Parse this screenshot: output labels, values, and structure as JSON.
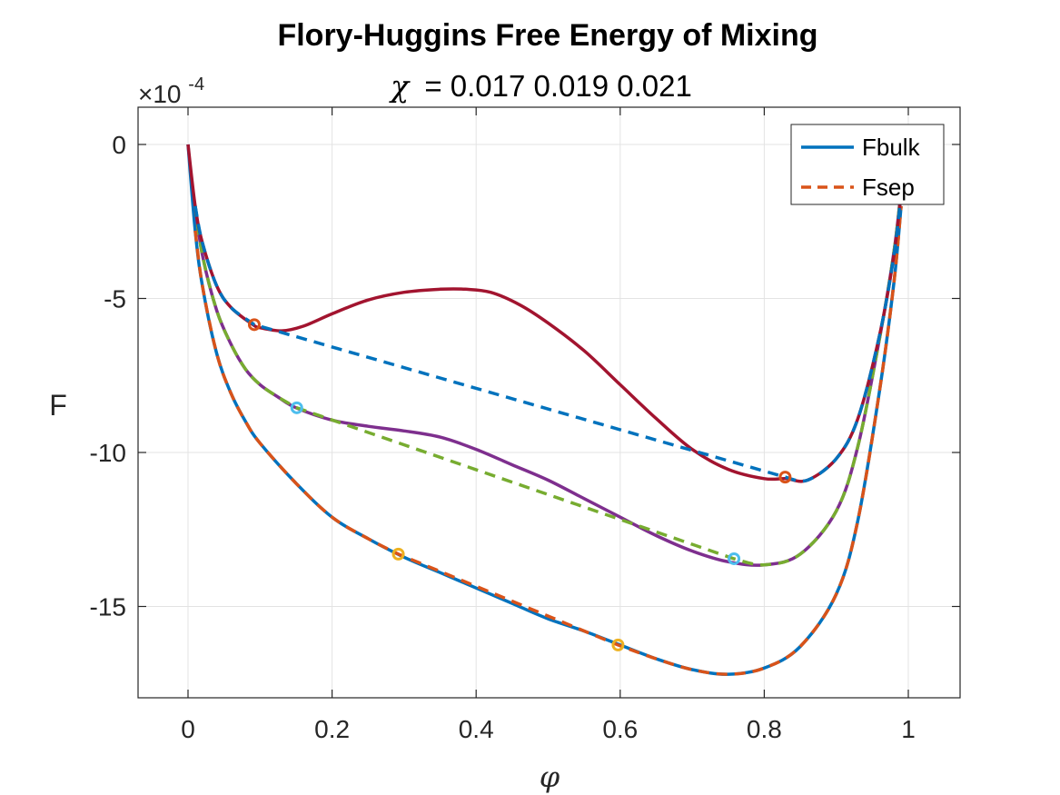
{
  "chart_data": {
    "type": "line",
    "title": "Flory-Huggins Free Energy of Mixing",
    "subtitle_symbol": "χ",
    "subtitle_values": "= 0.017 0.019 0.021",
    "xlabel": "φ",
    "ylabel": "F",
    "y_scale_multiplier": "×10",
    "y_scale_exponent": "-4",
    "xlim": [
      -0.07,
      1.07
    ],
    "ylim": [
      -18,
      1.2
    ],
    "grid": true,
    "xticks": [
      0,
      0.2,
      0.4,
      0.6,
      0.8,
      1
    ],
    "xtick_labels": [
      "0",
      "0.2",
      "0.4",
      "0.6",
      "0.8",
      "1"
    ],
    "yticks": [
      0,
      -5,
      -10,
      -15
    ],
    "ytick_labels": [
      "0",
      "-5",
      "-10",
      "-15"
    ],
    "legend": {
      "placement": "top-right",
      "entries": [
        {
          "label": "Fbulk",
          "color": "#0072BD",
          "style": "solid"
        },
        {
          "label": "Fsep",
          "color": "#D95319",
          "style": "dashed"
        }
      ]
    },
    "series": [
      {
        "chi": 0.017,
        "bulk_color": "#0072BD",
        "sep_color": "#D95319",
        "marker_color": "#EDB120",
        "x": [
          0,
          0.01,
          0.02,
          0.04,
          0.06,
          0.08,
          0.1,
          0.15,
          0.2,
          0.25,
          0.3,
          0.35,
          0.4,
          0.45,
          0.5,
          0.55,
          0.6,
          0.65,
          0.7,
          0.75,
          0.8,
          0.85,
          0.9,
          0.93,
          0.96,
          0.98,
          0.99
        ],
        "y": [
          0,
          -2.8,
          -4.6,
          -6.8,
          -8.1,
          -9.0,
          -9.7,
          -11.0,
          -12.1,
          -12.8,
          -13.4,
          -13.9,
          -14.4,
          -14.9,
          -15.4,
          -15.8,
          -16.25,
          -16.7,
          -17.05,
          -17.2,
          -17.0,
          -16.3,
          -14.6,
          -12.2,
          -8.0,
          -4.5,
          -2.0
        ],
        "sep_x": [
          0.01,
          0.02,
          0.04,
          0.06,
          0.08,
          0.1,
          0.15,
          0.2,
          0.25,
          0.292,
          0.597,
          0.65,
          0.7,
          0.75,
          0.8,
          0.85,
          0.9,
          0.93,
          0.96,
          0.98,
          0.99
        ],
        "sep_y": [
          -2.8,
          -4.6,
          -6.8,
          -8.1,
          -9.0,
          -9.7,
          -11.0,
          -12.1,
          -12.8,
          -13.3,
          -16.25,
          -16.7,
          -17.05,
          -17.2,
          -17.0,
          -16.3,
          -14.6,
          -12.2,
          -8.0,
          -4.5,
          -2.0
        ],
        "binodal_x": [
          0.292,
          0.597
        ],
        "binodal_y": [
          -13.3,
          -16.25
        ]
      },
      {
        "chi": 0.019,
        "bulk_color": "#7E2F8E",
        "sep_color": "#77AC30",
        "marker_color": "#4DBEEE",
        "x": [
          0.01,
          0.02,
          0.04,
          0.06,
          0.08,
          0.1,
          0.125,
          0.15,
          0.2,
          0.25,
          0.3,
          0.35,
          0.4,
          0.45,
          0.5,
          0.55,
          0.6,
          0.65,
          0.7,
          0.75,
          0.8,
          0.85,
          0.9,
          0.93,
          0.96,
          0.98,
          0.99
        ],
        "y": [
          -2.0,
          -3.6,
          -5.4,
          -6.5,
          -7.3,
          -7.8,
          -8.2,
          -8.55,
          -8.95,
          -9.15,
          -9.3,
          -9.5,
          -9.9,
          -10.4,
          -10.9,
          -11.5,
          -12.1,
          -12.7,
          -13.2,
          -13.55,
          -13.65,
          -13.3,
          -11.9,
          -9.8,
          -6.3,
          -3.5,
          -1.5
        ],
        "sep_x": [
          0.01,
          0.02,
          0.04,
          0.06,
          0.08,
          0.1,
          0.125,
          0.151,
          0.758,
          0.8,
          0.85,
          0.9,
          0.93,
          0.96,
          0.98,
          0.99
        ],
        "sep_y": [
          -2.0,
          -3.6,
          -5.4,
          -6.5,
          -7.3,
          -7.8,
          -8.2,
          -8.55,
          -13.45,
          -13.65,
          -13.3,
          -11.9,
          -9.8,
          -6.3,
          -3.5,
          -1.5
        ],
        "binodal_x": [
          0.151,
          0.758
        ],
        "binodal_y": [
          -8.55,
          -13.45
        ]
      },
      {
        "chi": 0.021,
        "bulk_color": "#A2142F",
        "sep_color": "#0072BD",
        "marker_color": "#D95319",
        "x": [
          0,
          0.01,
          0.02,
          0.04,
          0.06,
          0.09,
          0.1,
          0.13,
          0.16,
          0.2,
          0.25,
          0.3,
          0.35,
          0.385,
          0.42,
          0.46,
          0.5,
          0.55,
          0.6,
          0.65,
          0.7,
          0.75,
          0.8,
          0.83,
          0.86,
          0.9,
          0.93,
          0.96,
          0.98,
          0.99
        ],
        "y": [
          0,
          -2.0,
          -3.2,
          -4.6,
          -5.3,
          -5.85,
          -5.95,
          -6.05,
          -5.9,
          -5.5,
          -5.05,
          -4.8,
          -4.7,
          -4.7,
          -4.8,
          -5.2,
          -5.8,
          -6.7,
          -7.8,
          -8.9,
          -9.9,
          -10.55,
          -10.85,
          -10.85,
          -10.9,
          -10.2,
          -8.9,
          -6.2,
          -3.6,
          -1.6
        ],
        "sep_x": [
          0.01,
          0.02,
          0.04,
          0.06,
          0.092,
          0.829,
          0.86,
          0.9,
          0.93,
          0.96,
          0.98,
          0.99
        ],
        "sep_y": [
          -2.0,
          -3.2,
          -4.6,
          -5.3,
          -5.85,
          -10.8,
          -10.9,
          -10.2,
          -8.9,
          -6.2,
          -3.6,
          -1.6
        ],
        "binodal_x": [
          0.092,
          0.829
        ],
        "binodal_y": [
          -5.85,
          -10.8
        ]
      }
    ]
  }
}
